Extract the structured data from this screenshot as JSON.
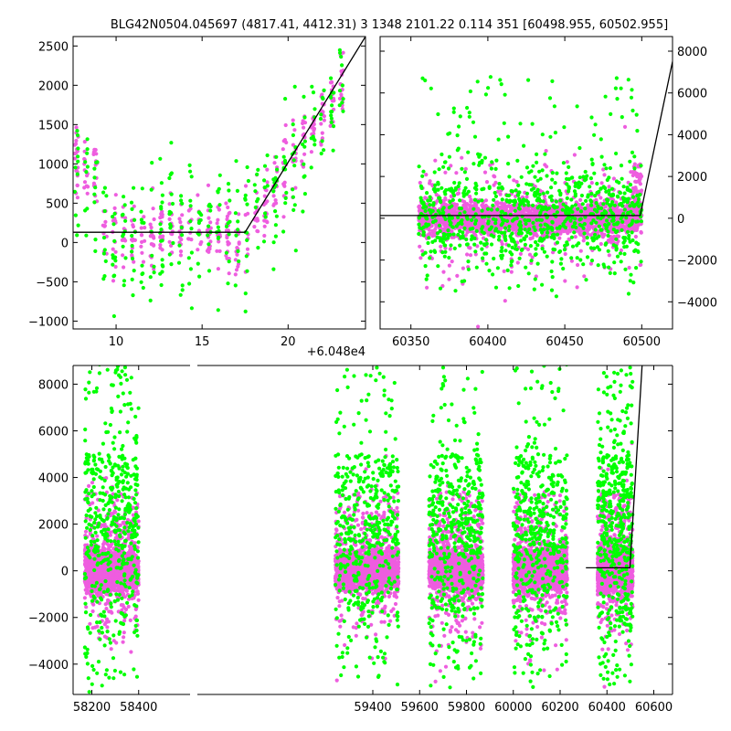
{
  "figure": {
    "title": "BLG42N0504.045697 (4817.41, 4412.31)   3 1348 2101.22 0.114 351 [60498.955, 60502.955]",
    "offset_label": "+6.048e4",
    "colors": {
      "series_a": "#00ff00",
      "series_b": "#ee5ddf",
      "model_line": "#000000",
      "axes": "#000000",
      "background": "#ffffff"
    }
  },
  "chart_data": [
    {
      "type": "scatter",
      "panel": "top-left",
      "xlim": [
        7.5,
        24.5
      ],
      "ylim": [
        -1100,
        2620
      ],
      "xticks": [
        10,
        15,
        20
      ],
      "yticks": [
        -1000,
        -500,
        0,
        500,
        1000,
        1500,
        2000,
        2500
      ],
      "xtick_labels": [
        "10",
        "15",
        "20"
      ],
      "ytick_labels": [
        "−1000",
        "−500",
        "0",
        "500",
        "1000",
        "1500",
        "2000",
        "2500"
      ],
      "x_offset_text": "+6.048e4",
      "series": [
        {
          "color_key": "series_a",
          "approx_count": 320
        },
        {
          "color_key": "series_b",
          "approx_count": 420
        }
      ],
      "model_line": {
        "x": [
          7.5,
          17.5,
          24.5
        ],
        "y": [
          130,
          130,
          2620
        ]
      }
    },
    {
      "type": "scatter",
      "panel": "top-right",
      "xlim": [
        60330,
        60520
      ],
      "ylim": [
        -5300,
        8700
      ],
      "xticks": [
        60350,
        60400,
        60450,
        60500
      ],
      "yticks": [
        -4000,
        -2000,
        0,
        2000,
        4000,
        6000,
        8000
      ],
      "xtick_labels": [
        "60350",
        "60400",
        "60450",
        "60500"
      ],
      "ytick_labels": [
        "−4000",
        "−2000",
        "0",
        "2000",
        "4000",
        "6000",
        "8000"
      ],
      "y_axis_side": "right",
      "series": [
        {
          "color_key": "series_a",
          "approx_count": 900
        },
        {
          "color_key": "series_b",
          "approx_count": 2500
        }
      ],
      "model_line": {
        "x": [
          60330,
          60499,
          60520
        ],
        "y": [
          130,
          130,
          7500
        ]
      }
    },
    {
      "type": "scatter",
      "panel": "bottom",
      "xlim": [
        58120,
        60680
      ],
      "ylim": [
        -5300,
        8800
      ],
      "xticks": [
        58200,
        58400,
        59400,
        59600,
        59800,
        60000,
        60200,
        60400,
        60600
      ],
      "yticks": [
        -4000,
        -2000,
        0,
        2000,
        4000,
        6000,
        8000
      ],
      "xtick_labels": [
        "58200",
        "58400",
        "59400",
        "59600",
        "59800",
        "60000",
        "60200",
        "60400",
        "60600"
      ],
      "ytick_labels": [
        "−4000",
        "−2000",
        "0",
        "2000",
        "4000",
        "6000",
        "8000"
      ],
      "axis_gap_after": 58420,
      "axis_gap_before": 59200,
      "seasons": [
        {
          "x": [
            58170,
            58400
          ]
        },
        {
          "x": [
            59240,
            59510
          ]
        },
        {
          "x": [
            59640,
            59870
          ]
        },
        {
          "x": [
            60000,
            60230
          ]
        },
        {
          "x": [
            60360,
            60510
          ]
        }
      ],
      "series": [
        {
          "color_key": "series_a",
          "approx_count": 2400
        },
        {
          "color_key": "series_b",
          "approx_count": 9000
        }
      ],
      "model_line": {
        "x": [
          60310,
          60498,
          60550
        ],
        "y": [
          130,
          130,
          8800
        ]
      }
    }
  ]
}
